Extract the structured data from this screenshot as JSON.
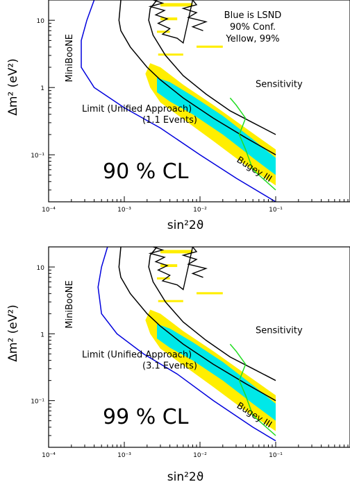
{
  "chart_data": [
    {
      "type": "line",
      "title": "",
      "panel_label": "90 % CL",
      "xlabel": "sin²2ϑ",
      "ylabel": "Δm² (eV²)",
      "xscale": "log",
      "yscale": "log",
      "xlim": [
        0.0001,
        0.1
      ],
      "ylim": [
        0.02,
        20
      ],
      "x_tick_labels": [
        "10⁻⁴",
        "10⁻³",
        "10⁻²",
        "10⁻¹"
      ],
      "y_tick_labels": [
        "10⁻¹",
        "1",
        "10"
      ],
      "legend_text": [
        "Blue is LSND",
        "90% Conf.",
        "Yellow, 99%"
      ],
      "annotations": [
        "Limit (Unified Approach)",
        "(1.1 Events)",
        "Sensitivity",
        "MiniBooNE",
        "Bugey III"
      ],
      "colors": {
        "lsnd_90": "#00e8e8",
        "lsnd_99": "#ffee00",
        "miniboone": "#0000dd",
        "bugey": "#22dd22",
        "curves": "#000000"
      },
      "miniboone_label": "MiniBooNE",
      "bugey_label": "Bugey III",
      "series": [
        {
          "name": "Sensitivity",
          "x": [
            0.0009,
            0.00085,
            0.0009,
            0.0012,
            0.002,
            0.003,
            0.006,
            0.015,
            0.04,
            0.1
          ],
          "y": [
            20,
            10,
            7,
            4,
            2,
            1.3,
            0.7,
            0.35,
            0.18,
            0.1
          ]
        },
        {
          "name": "Limit (Unified Approach)",
          "x": [
            0.0027,
            0.0022,
            0.0021,
            0.0024,
            0.0035,
            0.006,
            0.012,
            0.025,
            0.05,
            0.1
          ],
          "y": [
            20,
            15,
            10,
            6,
            3,
            1.5,
            0.8,
            0.45,
            0.3,
            0.2
          ]
        },
        {
          "name": "MiniBooNE",
          "x": [
            0.0004,
            0.00032,
            0.00027,
            0.00027,
            0.0004,
            0.001,
            0.003,
            0.01,
            0.03,
            0.1
          ],
          "y": [
            20,
            10,
            5,
            2,
            1,
            0.5,
            0.25,
            0.1,
            0.045,
            0.02
          ]
        },
        {
          "name": "Bugey III",
          "x": [
            0.025,
            0.03,
            0.04,
            0.033,
            0.04,
            0.05,
            0.1
          ],
          "y": [
            0.7,
            0.55,
            0.35,
            0.2,
            0.12,
            0.06,
            0.03
          ]
        }
      ]
    },
    {
      "type": "line",
      "title": "",
      "panel_label": "99 % CL",
      "xlabel": "sin²2ϑ",
      "ylabel": "Δm² (eV²)",
      "xscale": "log",
      "yscale": "log",
      "xlim": [
        0.0001,
        0.1
      ],
      "ylim": [
        0.02,
        20
      ],
      "x_tick_labels": [
        "10⁻⁴",
        "10⁻³",
        "10⁻²",
        "10⁻¹"
      ],
      "y_tick_labels": [
        "10⁻¹",
        "1",
        "10"
      ],
      "annotations": [
        "Limit (Unified Approach)",
        "(3.1 Events)",
        "Sensitivity",
        "MiniBooNE",
        "Bugey III"
      ],
      "colors": {
        "lsnd_90": "#00e8e8",
        "lsnd_99": "#ffee00",
        "miniboone": "#0000dd",
        "bugey": "#22dd22",
        "curves": "#000000"
      },
      "miniboone_label": "MiniBooNE",
      "bugey_label": "Bugey III",
      "series": [
        {
          "name": "Sensitivity",
          "x": [
            0.0009,
            0.00085,
            0.0009,
            0.0012,
            0.002,
            0.003,
            0.006,
            0.015,
            0.04,
            0.1
          ],
          "y": [
            20,
            10,
            7,
            4,
            2,
            1.3,
            0.7,
            0.35,
            0.18,
            0.1
          ]
        },
        {
          "name": "Limit (Unified Approach)",
          "x": [
            0.0027,
            0.0022,
            0.0021,
            0.0024,
            0.0035,
            0.006,
            0.012,
            0.025,
            0.05,
            0.1
          ],
          "y": [
            20,
            15,
            10,
            6,
            3,
            1.5,
            0.8,
            0.45,
            0.3,
            0.2
          ]
        },
        {
          "name": "MiniBooNE",
          "x": [
            0.0006,
            0.0005,
            0.00045,
            0.0005,
            0.0008,
            0.0018,
            0.005,
            0.015,
            0.05,
            0.1
          ],
          "y": [
            20,
            10,
            5,
            2,
            1,
            0.5,
            0.25,
            0.1,
            0.04,
            0.025
          ]
        },
        {
          "name": "Bugey III",
          "x": [
            0.025,
            0.03,
            0.04,
            0.033,
            0.04,
            0.05,
            0.1
          ],
          "y": [
            0.7,
            0.55,
            0.35,
            0.2,
            0.12,
            0.06,
            0.03
          ]
        }
      ]
    }
  ]
}
